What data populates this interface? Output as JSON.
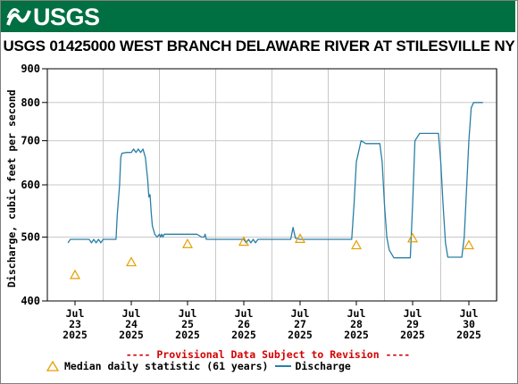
{
  "header": {
    "logo_text": "USGS",
    "brand_color": "#006f41"
  },
  "chart_data": {
    "type": "line",
    "title": "USGS 01425000 WEST BRANCH DELAWARE RIVER AT STILESVILLE NY",
    "ylabel": "Discharge, cubic feet per second",
    "y_scale": "log",
    "ylim": [
      400,
      900
    ],
    "y_ticks": [
      400,
      500,
      600,
      700,
      800,
      900
    ],
    "x_ticks": [
      {
        "month": "Jul",
        "day": "23",
        "year": "2025"
      },
      {
        "month": "Jul",
        "day": "24",
        "year": "2025"
      },
      {
        "month": "Jul",
        "day": "25",
        "year": "2025"
      },
      {
        "month": "Jul",
        "day": "26",
        "year": "2025"
      },
      {
        "month": "Jul",
        "day": "27",
        "year": "2025"
      },
      {
        "month": "Jul",
        "day": "28",
        "year": "2025"
      },
      {
        "month": "Jul",
        "day": "29",
        "year": "2025"
      },
      {
        "month": "Jul",
        "day": "30",
        "year": "2025"
      }
    ],
    "grid": true,
    "provisional_note": "---- Provisional Data Subject to Revision ----",
    "series": [
      {
        "name": "Discharge",
        "color": "#2a7fa6",
        "points": [
          [
            "2025-07-22 21:00",
            490
          ],
          [
            "2025-07-22 22:00",
            496
          ],
          [
            "2025-07-23 00:00",
            496
          ],
          [
            "2025-07-23 02:00",
            496
          ],
          [
            "2025-07-23 04:00",
            496
          ],
          [
            "2025-07-23 06:00",
            496
          ],
          [
            "2025-07-23 07:00",
            490
          ],
          [
            "2025-07-23 08:00",
            496
          ],
          [
            "2025-07-23 09:00",
            490
          ],
          [
            "2025-07-23 10:00",
            496
          ],
          [
            "2025-07-23 11:00",
            490
          ],
          [
            "2025-07-23 12:00",
            496
          ],
          [
            "2025-07-23 14:00",
            496
          ],
          [
            "2025-07-23 16:00",
            496
          ],
          [
            "2025-07-23 17:30",
            496
          ],
          [
            "2025-07-23 18:00",
            540
          ],
          [
            "2025-07-23 19:00",
            600
          ],
          [
            "2025-07-23 19:30",
            660
          ],
          [
            "2025-07-23 20:00",
            670
          ],
          [
            "2025-07-23 22:00",
            672
          ],
          [
            "2025-07-24 00:00",
            672
          ],
          [
            "2025-07-24 01:00",
            680
          ],
          [
            "2025-07-24 02:00",
            672
          ],
          [
            "2025-07-24 03:00",
            680
          ],
          [
            "2025-07-24 04:00",
            672
          ],
          [
            "2025-07-24 05:00",
            680
          ],
          [
            "2025-07-24 06:00",
            660
          ],
          [
            "2025-07-24 07:00",
            610
          ],
          [
            "2025-07-24 07:30",
            575
          ],
          [
            "2025-07-24 08:00",
            580
          ],
          [
            "2025-07-24 08:30",
            545
          ],
          [
            "2025-07-24 09:00",
            520
          ],
          [
            "2025-07-24 10:00",
            505
          ],
          [
            "2025-07-24 11:00",
            500
          ],
          [
            "2025-07-24 12:00",
            505
          ],
          [
            "2025-07-24 12:30",
            500
          ],
          [
            "2025-07-24 13:00",
            505
          ],
          [
            "2025-07-24 13:30",
            500
          ],
          [
            "2025-07-24 14:00",
            505
          ],
          [
            "2025-07-24 16:00",
            505
          ],
          [
            "2025-07-24 20:00",
            505
          ],
          [
            "2025-07-25 00:00",
            505
          ],
          [
            "2025-07-25 04:00",
            505
          ],
          [
            "2025-07-25 06:00",
            500
          ],
          [
            "2025-07-25 07:00",
            500
          ],
          [
            "2025-07-25 07:30",
            505
          ],
          [
            "2025-07-25 08:00",
            496
          ],
          [
            "2025-07-25 12:00",
            496
          ],
          [
            "2025-07-25 16:00",
            496
          ],
          [
            "2025-07-25 20:00",
            496
          ],
          [
            "2025-07-26 00:00",
            496
          ],
          [
            "2025-07-26 01:00",
            490
          ],
          [
            "2025-07-26 02:00",
            496
          ],
          [
            "2025-07-26 03:00",
            490
          ],
          [
            "2025-07-26 04:00",
            496
          ],
          [
            "2025-07-26 05:00",
            490
          ],
          [
            "2025-07-26 06:00",
            496
          ],
          [
            "2025-07-26 12:00",
            496
          ],
          [
            "2025-07-26 20:00",
            496
          ],
          [
            "2025-07-26 21:00",
            517
          ],
          [
            "2025-07-26 22:00",
            498
          ],
          [
            "2025-07-27 00:00",
            496
          ],
          [
            "2025-07-27 06:00",
            496
          ],
          [
            "2025-07-27 12:00",
            496
          ],
          [
            "2025-07-27 18:00",
            496
          ],
          [
            "2025-07-27 22:00",
            496
          ],
          [
            "2025-07-27 23:00",
            560
          ],
          [
            "2025-07-28 00:00",
            650
          ],
          [
            "2025-07-28 02:00",
            700
          ],
          [
            "2025-07-28 04:00",
            693
          ],
          [
            "2025-07-28 08:00",
            693
          ],
          [
            "2025-07-28 10:00",
            693
          ],
          [
            "2025-07-28 11:00",
            650
          ],
          [
            "2025-07-28 12:00",
            560
          ],
          [
            "2025-07-28 13:00",
            500
          ],
          [
            "2025-07-28 14:00",
            478
          ],
          [
            "2025-07-28 16:00",
            465
          ],
          [
            "2025-07-28 20:00",
            465
          ],
          [
            "2025-07-28 23:00",
            465
          ],
          [
            "2025-07-29 00:00",
            560
          ],
          [
            "2025-07-29 01:00",
            700
          ],
          [
            "2025-07-29 03:00",
            718
          ],
          [
            "2025-07-29 08:00",
            718
          ],
          [
            "2025-07-29 11:00",
            718
          ],
          [
            "2025-07-29 12:00",
            650
          ],
          [
            "2025-07-29 13:00",
            560
          ],
          [
            "2025-07-29 14:00",
            490
          ],
          [
            "2025-07-29 15:00",
            466
          ],
          [
            "2025-07-29 18:00",
            466
          ],
          [
            "2025-07-29 21:00",
            466
          ],
          [
            "2025-07-29 22:00",
            500
          ],
          [
            "2025-07-30 00:00",
            700
          ],
          [
            "2025-07-30 01:00",
            785
          ],
          [
            "2025-07-30 02:00",
            800
          ],
          [
            "2025-07-30 06:00",
            800
          ]
        ]
      },
      {
        "name": "Median daily statistic (61 years)",
        "marker": "triangle",
        "color": "#e69f00",
        "points": [
          [
            "2025-07-23 00:00",
            438
          ],
          [
            "2025-07-24 00:00",
            458
          ],
          [
            "2025-07-25 00:00",
            488
          ],
          [
            "2025-07-26 00:00",
            492
          ],
          [
            "2025-07-27 00:00",
            497
          ],
          [
            "2025-07-28 00:00",
            486
          ],
          [
            "2025-07-29 00:00",
            498
          ],
          [
            "2025-07-30 00:00",
            486
          ]
        ]
      }
    ],
    "legend": {
      "placement": "bottom-left",
      "entries": [
        {
          "label": "Median daily statistic (61 years)",
          "symbol": "triangle"
        },
        {
          "label": "Discharge",
          "symbol": "line"
        }
      ]
    }
  }
}
